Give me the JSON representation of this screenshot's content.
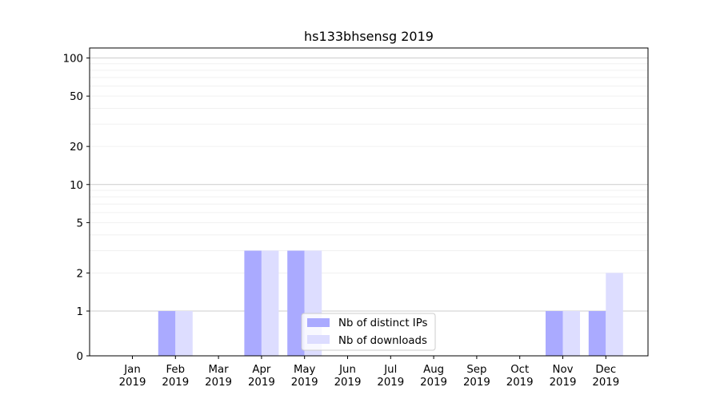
{
  "chart_data": {
    "type": "bar",
    "title": "hs133bhsensg 2019",
    "xlabel": "",
    "ylabel": "",
    "categories": [
      [
        "Jan",
        "2019"
      ],
      [
        "Feb",
        "2019"
      ],
      [
        "Mar",
        "2019"
      ],
      [
        "Apr",
        "2019"
      ],
      [
        "May",
        "2019"
      ],
      [
        "Jun",
        "2019"
      ],
      [
        "Jul",
        "2019"
      ],
      [
        "Aug",
        "2019"
      ],
      [
        "Sep",
        "2019"
      ],
      [
        "Oct",
        "2019"
      ],
      [
        "Nov",
        "2019"
      ],
      [
        "Dec",
        "2019"
      ]
    ],
    "series": [
      {
        "name": "Nb of distinct IPs",
        "color": "#aaaaff",
        "values": [
          0,
          1,
          0,
          3,
          3,
          0,
          0,
          0,
          0,
          0,
          1,
          1
        ]
      },
      {
        "name": "Nb of downloads",
        "color": "#ddddff",
        "values": [
          0,
          1,
          0,
          3,
          3,
          0,
          0,
          0,
          0,
          0,
          1,
          2
        ]
      }
    ],
    "y_scale": "symlog",
    "yticks": [
      0,
      1,
      2,
      5,
      10,
      20,
      50,
      100
    ],
    "ytick_labels": [
      "0",
      "1",
      "2",
      "5",
      "10",
      "20",
      "50",
      "100"
    ],
    "ylim": [
      0,
      120
    ],
    "grid": true,
    "legend_position": "bottom-center"
  }
}
